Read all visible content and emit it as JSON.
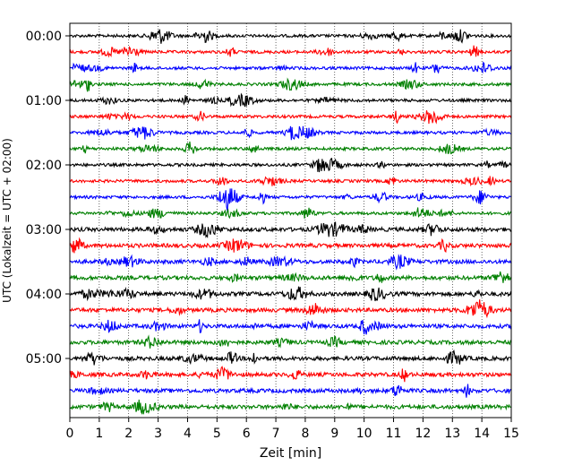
{
  "chart_data": {
    "type": "line",
    "title": "",
    "xlabel": "Zeit  [min]",
    "ylabel": "UTC (Lokalzeit = UTC + 02:00)",
    "xlim": [
      0,
      15
    ],
    "x_ticks": [
      0,
      1,
      2,
      3,
      4,
      5,
      6,
      7,
      8,
      9,
      10,
      11,
      12,
      13,
      14,
      15
    ],
    "x_tick_labels": [
      "0",
      "1",
      "2",
      "3",
      "4",
      "5",
      "6",
      "7",
      "8",
      "9",
      "10",
      "11",
      "12",
      "13",
      "14",
      "15"
    ],
    "y_tick_labels": [
      "00:00",
      "01:00",
      "02:00",
      "03:00",
      "04:00",
      "05:00"
    ],
    "y_tick_rows": [
      0,
      4,
      8,
      12,
      16,
      20
    ],
    "grid": "vertical dotted",
    "trace_colors": [
      "#000000",
      "#ff0000",
      "#0000ff",
      "#008000"
    ],
    "traces": [
      {
        "start": "00:00",
        "color": "#000000"
      },
      {
        "start": "00:15",
        "color": "#ff0000"
      },
      {
        "start": "00:30",
        "color": "#0000ff"
      },
      {
        "start": "00:45",
        "color": "#008000"
      },
      {
        "start": "01:00",
        "color": "#000000"
      },
      {
        "start": "01:15",
        "color": "#ff0000"
      },
      {
        "start": "01:30",
        "color": "#0000ff"
      },
      {
        "start": "01:45",
        "color": "#008000"
      },
      {
        "start": "02:00",
        "color": "#000000"
      },
      {
        "start": "02:15",
        "color": "#ff0000"
      },
      {
        "start": "02:30",
        "color": "#0000ff"
      },
      {
        "start": "02:45",
        "color": "#008000"
      },
      {
        "start": "03:00",
        "color": "#000000"
      },
      {
        "start": "03:15",
        "color": "#ff0000"
      },
      {
        "start": "03:30",
        "color": "#0000ff"
      },
      {
        "start": "03:45",
        "color": "#008000"
      },
      {
        "start": "04:00",
        "color": "#000000"
      },
      {
        "start": "04:15",
        "color": "#ff0000"
      },
      {
        "start": "04:30",
        "color": "#0000ff"
      },
      {
        "start": "04:45",
        "color": "#008000"
      },
      {
        "start": "05:00",
        "color": "#000000"
      },
      {
        "start": "05:15",
        "color": "#ff0000"
      },
      {
        "start": "05:30",
        "color": "#0000ff"
      },
      {
        "start": "05:45",
        "color": "#008000"
      }
    ]
  }
}
